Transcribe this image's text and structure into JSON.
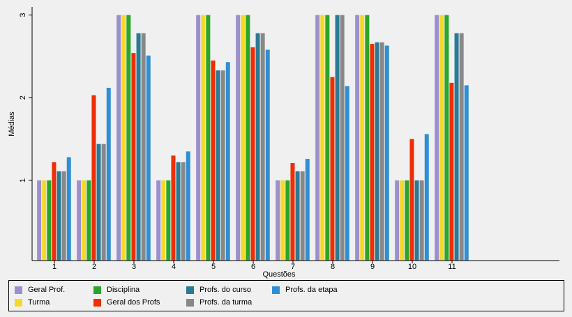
{
  "chart_data": {
    "type": "bar",
    "title": "",
    "xlabel": "Questões",
    "ylabel": "Médias",
    "categories": [
      "1",
      "2",
      "3",
      "4",
      "5",
      "6",
      "7",
      "8",
      "9",
      "10",
      "11"
    ],
    "yticks": [
      "1",
      "2",
      "3"
    ],
    "ylim": [
      0.03,
      3.03
    ],
    "grid": false,
    "legend_position": "bottom",
    "series": [
      {
        "name": "Geral Prof.",
        "color": "#9c8fce",
        "values": [
          1,
          1,
          3,
          1,
          3,
          3,
          1,
          3,
          3,
          1,
          3
        ]
      },
      {
        "name": "Turma",
        "color": "#f5d92a",
        "values": [
          1,
          1,
          3,
          1,
          3,
          3,
          1,
          3,
          3,
          1,
          3
        ]
      },
      {
        "name": "Disciplina",
        "color": "#2aa52a",
        "values": [
          1,
          1,
          3,
          1,
          3,
          3,
          1,
          3,
          3,
          1,
          3
        ]
      },
      {
        "name": "Geral dos Profs",
        "color": "#ee2e06",
        "values": [
          1.22,
          2.03,
          2.54,
          1.3,
          2.45,
          2.61,
          1.21,
          2.25,
          2.65,
          1.5,
          2.18
        ]
      },
      {
        "name": "Profs. do curso",
        "color": "#2a7a96",
        "values": [
          1.11,
          1.44,
          2.78,
          1.22,
          2.33,
          2.78,
          1.11,
          3,
          2.67,
          1,
          2.78
        ]
      },
      {
        "name": "Profs. da turma",
        "color": "#888888",
        "values": [
          1.11,
          1.44,
          2.78,
          1.22,
          2.33,
          2.78,
          1.11,
          3,
          2.67,
          1,
          2.78
        ]
      },
      {
        "name": "Profs. da etapa",
        "color": "#2e8fd4",
        "values": [
          1.28,
          2.12,
          2.51,
          1.35,
          2.43,
          2.58,
          1.26,
          2.14,
          2.63,
          1.56,
          2.15
        ]
      }
    ]
  }
}
